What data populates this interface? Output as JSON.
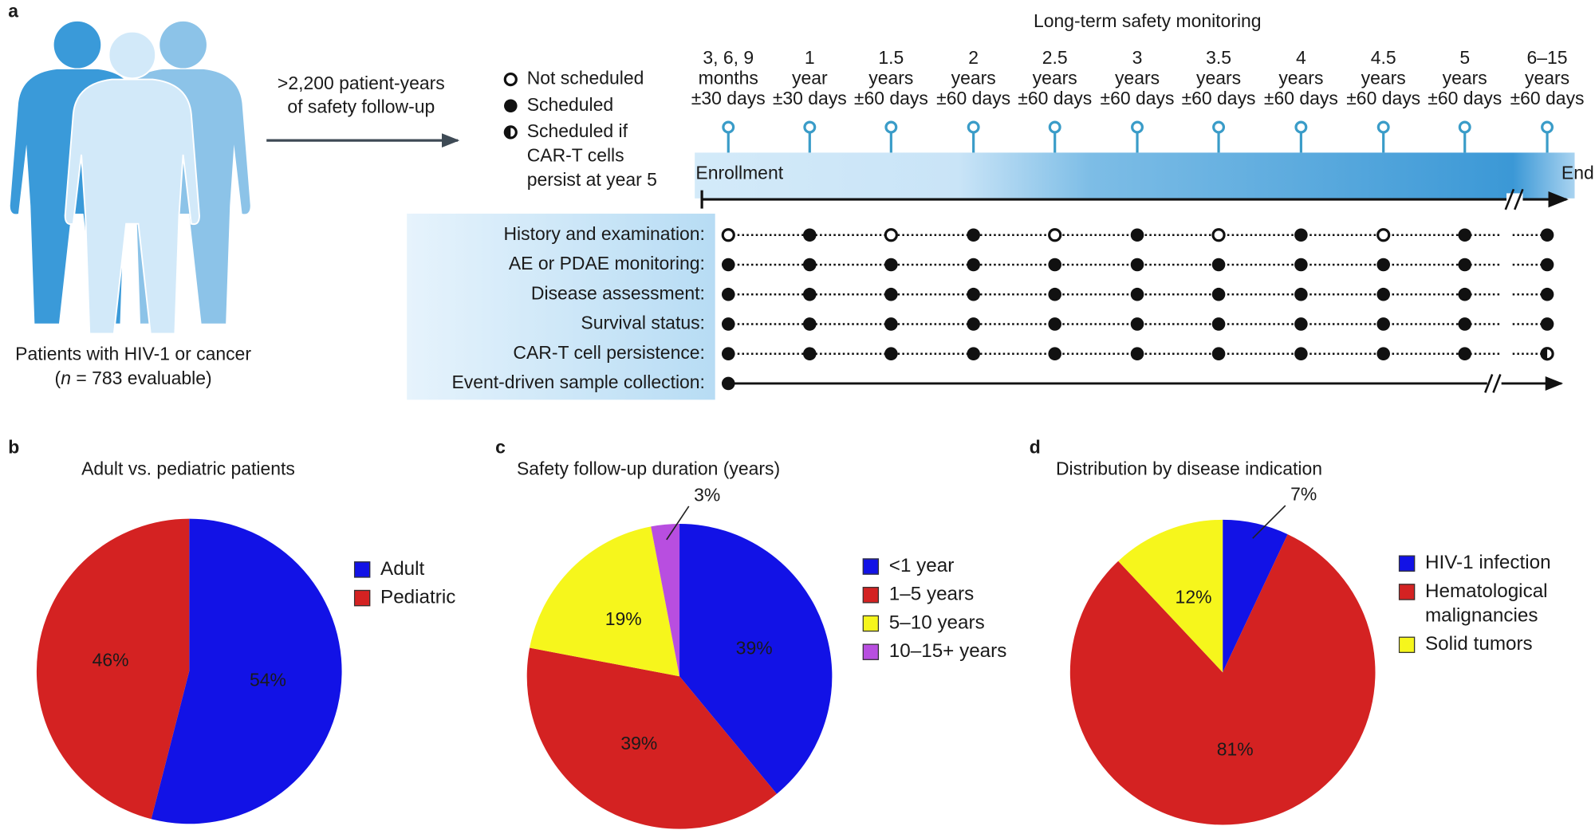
{
  "panel_labels": [
    "a",
    "b",
    "c",
    "d"
  ],
  "cohort": {
    "caption": "Patients with HIV-1 or cancer",
    "n_open": "(",
    "n_symbol": "n",
    "n_rest": " = 783 evaluable)"
  },
  "follow_up": [
    ">2,200 patient-years",
    "of safety follow-up"
  ],
  "legend": [
    {
      "symbol": "open",
      "lines": [
        "Not scheduled"
      ]
    },
    {
      "symbol": "filled",
      "lines": [
        "Scheduled"
      ]
    },
    {
      "symbol": "half",
      "lines": [
        "Scheduled if",
        "CAR-T cells",
        "persist at year 5"
      ]
    }
  ],
  "timeline": {
    "title": "Long-term safety monitoring",
    "start": "Enrollment",
    "end": "End",
    "timepoints": [
      [
        "3, 6, 9",
        "months",
        "±30 days"
      ],
      [
        "1",
        "year",
        "±30 days"
      ],
      [
        "1.5",
        "years",
        "±60 days"
      ],
      [
        "2",
        "years",
        "±60 days"
      ],
      [
        "2.5",
        "years",
        "±60 days"
      ],
      [
        "3",
        "years",
        "±60 days"
      ],
      [
        "3.5",
        "years",
        "±60 days"
      ],
      [
        "4",
        "years",
        "±60 days"
      ],
      [
        "4.5",
        "years",
        "±60 days"
      ],
      [
        "5",
        "years",
        "±60 days"
      ],
      [
        "6–15",
        "years",
        "±60 days"
      ]
    ],
    "rows": [
      {
        "label": "History and examination:",
        "schedule": [
          "open",
          "filled",
          "open",
          "filled",
          "open",
          "filled",
          "open",
          "filled",
          "open",
          "filled",
          "filled"
        ]
      },
      {
        "label": "AE or PDAE monitoring:",
        "schedule": [
          "filled",
          "filled",
          "filled",
          "filled",
          "filled",
          "filled",
          "filled",
          "filled",
          "filled",
          "filled",
          "filled"
        ]
      },
      {
        "label": "Disease assessment:",
        "schedule": [
          "filled",
          "filled",
          "filled",
          "filled",
          "filled",
          "filled",
          "filled",
          "filled",
          "filled",
          "filled",
          "filled"
        ]
      },
      {
        "label": "Survival status:",
        "schedule": [
          "filled",
          "filled",
          "filled",
          "filled",
          "filled",
          "filled",
          "filled",
          "filled",
          "filled",
          "filled",
          "filled"
        ]
      },
      {
        "label": "CAR-T cell persistence:",
        "schedule": [
          "filled",
          "filled",
          "filled",
          "filled",
          "filled",
          "filled",
          "filled",
          "filled",
          "filled",
          "filled",
          "half"
        ]
      },
      {
        "label": "Event-driven sample collection:",
        "schedule": "continuous"
      }
    ]
  },
  "chart_data": [
    {
      "type": "pie",
      "title": "Adult vs. pediatric patients",
      "categories": [
        "Adult",
        "Pediatric"
      ],
      "values": [
        54,
        46
      ],
      "value_labels": [
        "54%",
        "46%"
      ],
      "colors": [
        "#1212e6",
        "#d42222"
      ]
    },
    {
      "type": "pie",
      "title": "Safety follow-up duration (years)",
      "categories": [
        "<1 year",
        "1–5 years",
        "5–10 years",
        "10–15+ years"
      ],
      "values": [
        39,
        39,
        19,
        3
      ],
      "value_labels": [
        "39%",
        "39%",
        "19%",
        "3%"
      ],
      "colors": [
        "#1212e6",
        "#d42222",
        "#f6f61c",
        "#b84ee0"
      ]
    },
    {
      "type": "pie",
      "title": "Distribution by disease indication",
      "categories": [
        "HIV-1 infection",
        "Hematological malignancies",
        "Solid tumors"
      ],
      "values": [
        7,
        81,
        12
      ],
      "value_labels": [
        "7%",
        "81%",
        "12%"
      ],
      "colors": [
        "#1212e6",
        "#d42222",
        "#f6f61c"
      ]
    }
  ]
}
